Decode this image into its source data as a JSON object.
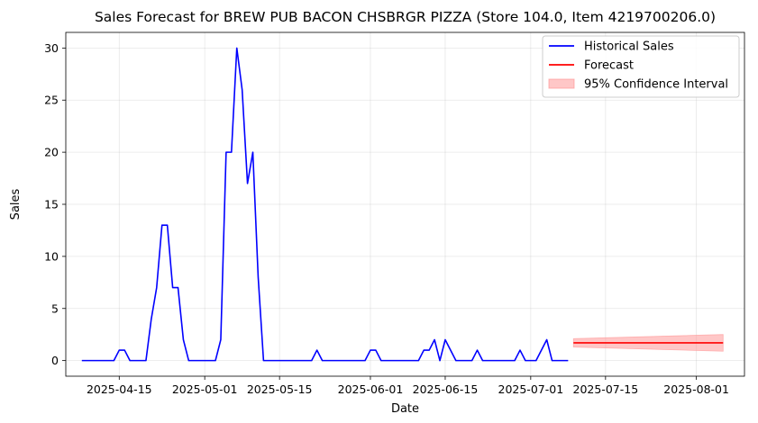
{
  "chart_data": {
    "type": "line",
    "title": "Sales Forecast for BREW PUB BACON CHSBRGR PIZZA (Store 104.0, Item 4219700206.0)",
    "xlabel": "Date",
    "ylabel": "Sales",
    "grid": true,
    "legend_position": "top-right",
    "xlim": [
      "2025-04-05",
      "2025-08-10"
    ],
    "ylim": [
      -1.5,
      31.5
    ],
    "x_ticks": [
      "2025-04-15",
      "2025-05-01",
      "2025-05-15",
      "2025-06-01",
      "2025-06-15",
      "2025-07-01",
      "2025-07-15",
      "2025-08-01"
    ],
    "y_ticks": [
      0,
      5,
      10,
      15,
      20,
      25,
      30
    ],
    "series": [
      {
        "name": "Historical Sales",
        "color": "#0000ff",
        "style": "line",
        "points": [
          [
            "2025-04-08",
            0
          ],
          [
            "2025-04-14",
            0
          ],
          [
            "2025-04-15",
            1
          ],
          [
            "2025-04-16",
            1
          ],
          [
            "2025-04-17",
            0
          ],
          [
            "2025-04-20",
            0
          ],
          [
            "2025-04-21",
            4
          ],
          [
            "2025-04-22",
            7
          ],
          [
            "2025-04-23",
            13
          ],
          [
            "2025-04-24",
            13
          ],
          [
            "2025-04-25",
            7
          ],
          [
            "2025-04-26",
            7
          ],
          [
            "2025-04-27",
            2
          ],
          [
            "2025-04-28",
            0
          ],
          [
            "2025-05-03",
            0
          ],
          [
            "2025-05-04",
            2
          ],
          [
            "2025-05-05",
            20
          ],
          [
            "2025-05-06",
            20
          ],
          [
            "2025-05-07",
            30
          ],
          [
            "2025-05-08",
            26
          ],
          [
            "2025-05-09",
            17
          ],
          [
            "2025-05-10",
            20
          ],
          [
            "2025-05-11",
            8
          ],
          [
            "2025-05-12",
            0
          ],
          [
            "2025-05-21",
            0
          ],
          [
            "2025-05-22",
            1
          ],
          [
            "2025-05-23",
            0
          ],
          [
            "2025-05-31",
            0
          ],
          [
            "2025-06-01",
            1
          ],
          [
            "2025-06-02",
            1
          ],
          [
            "2025-06-03",
            0
          ],
          [
            "2025-06-10",
            0
          ],
          [
            "2025-06-11",
            1
          ],
          [
            "2025-06-12",
            1
          ],
          [
            "2025-06-13",
            2
          ],
          [
            "2025-06-14",
            0
          ],
          [
            "2025-06-15",
            2
          ],
          [
            "2025-06-17",
            0
          ],
          [
            "2025-06-20",
            0
          ],
          [
            "2025-06-21",
            1
          ],
          [
            "2025-06-22",
            0
          ],
          [
            "2025-06-28",
            0
          ],
          [
            "2025-06-29",
            1
          ],
          [
            "2025-06-30",
            0
          ],
          [
            "2025-07-02",
            0
          ],
          [
            "2025-07-04",
            2
          ],
          [
            "2025-07-05",
            0
          ],
          [
            "2025-07-08",
            0
          ]
        ]
      },
      {
        "name": "Forecast",
        "color": "#ff0000",
        "style": "line",
        "points": [
          [
            "2025-07-09",
            1.7
          ],
          [
            "2025-08-06",
            1.7
          ]
        ]
      },
      {
        "name": "95% Confidence Interval",
        "color": "#ff9999",
        "style": "band",
        "lower": [
          [
            "2025-07-09",
            1.3
          ],
          [
            "2025-08-06",
            0.9
          ]
        ],
        "upper": [
          [
            "2025-07-09",
            2.1
          ],
          [
            "2025-08-06",
            2.5
          ]
        ]
      }
    ]
  }
}
